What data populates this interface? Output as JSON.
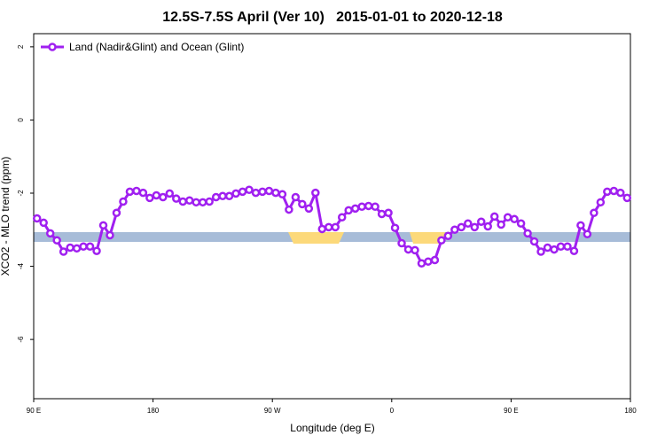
{
  "chart_data": {
    "type": "line",
    "title": "12.5S-7.5S April (Ver 10)   2015-01-01 to 2020-12-18",
    "x_label": "Longitude (deg E)",
    "y_label": "XCO2 - MLO trend (ppm)",
    "xlim": [
      90,
      540
    ],
    "ylim": [
      -7.62,
      2.36
    ],
    "xticks": [
      {
        "value": 90,
        "label": "90 E"
      },
      180,
      {
        "value": 270,
        "label": "90 W"
      },
      {
        "value": 360,
        "label": "0"
      },
      {
        "value": 450,
        "label": "90 E"
      },
      {
        "value": 540,
        "label": "180"
      }
    ],
    "yticks": [
      2,
      0,
      -2,
      -4,
      -6
    ],
    "legend": "top-left",
    "x": [
      92.5,
      97.5,
      102.5,
      107.5,
      112.5,
      117.5,
      122.5,
      127.5,
      132.5,
      137.5,
      142.5,
      147.5,
      152.5,
      157.5,
      162.5,
      167.5,
      172.5,
      177.5,
      182.5,
      187.5,
      192.5,
      197.5,
      202.5,
      207.5,
      212.5,
      217.5,
      222.5,
      227.5,
      232.5,
      237.5,
      242.5,
      247.5,
      252.5,
      257.5,
      262.5,
      267.5,
      272.5,
      277.5,
      282.5,
      287.5,
      292.5,
      297.5,
      302.5,
      307.5,
      312.5,
      317.5,
      322.5,
      327.5,
      332.5,
      337.5,
      342.5,
      347.5,
      352.5,
      357.5,
      362.5,
      367.5,
      372.5,
      377.5,
      382.5,
      387.5,
      392.5,
      397.5,
      402.5,
      407.5,
      412.5,
      417.5,
      422.5,
      427.5,
      432.5,
      437.5,
      442.5,
      447.5,
      452.5,
      457.5,
      462.5,
      467.5,
      472.5,
      477.5,
      482.5,
      487.5,
      492.5,
      497.5,
      502.5,
      507.5,
      512.5,
      517.5,
      522.5,
      527.5,
      532.5,
      537.5
    ],
    "series": [
      {
        "name": "Land (Nadir&Glint) and Ocean (Glint)",
        "color": "#a020f0",
        "values": [
          -2.69,
          -2.81,
          -3.1,
          -3.29,
          -3.6,
          -3.49,
          -3.51,
          -3.46,
          -3.46,
          -3.58,
          -2.88,
          -3.15,
          -2.54,
          -2.23,
          -1.96,
          -1.94,
          -1.99,
          -2.13,
          -2.06,
          -2.11,
          -2.01,
          -2.15,
          -2.23,
          -2.2,
          -2.25,
          -2.25,
          -2.23,
          -2.11,
          -2.08,
          -2.08,
          -2.01,
          -1.96,
          -1.91,
          -1.99,
          -1.96,
          -1.94,
          -1.99,
          -2.03,
          -2.45,
          -2.11,
          -2.3,
          -2.42,
          -1.99,
          -2.98,
          -2.93,
          -2.93,
          -2.66,
          -2.47,
          -2.42,
          -2.37,
          -2.35,
          -2.37,
          -2.57,
          -2.54,
          -2.95,
          -3.37,
          -3.54,
          -3.56,
          -3.92,
          -3.87,
          -3.83,
          -3.29,
          -3.17,
          -3.0,
          -2.93,
          -2.83,
          -2.93,
          -2.78,
          -2.91,
          -2.64,
          -2.86,
          -2.66,
          -2.71,
          -2.83,
          -3.1,
          -3.32,
          -3.6,
          -3.49,
          -3.54,
          -3.46,
          -3.46,
          -3.58,
          -2.88,
          -3.12,
          -2.54,
          -2.25,
          -1.96,
          -1.94,
          -1.99,
          -2.13
        ]
      }
    ]
  }
}
